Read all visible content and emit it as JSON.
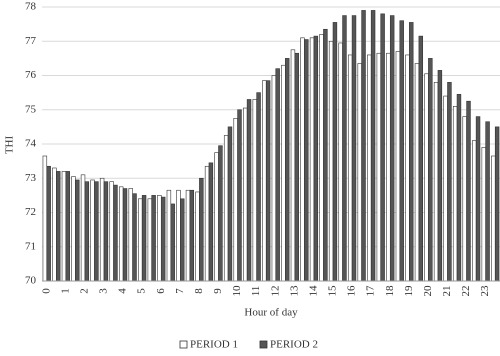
{
  "chart_data": {
    "type": "bar",
    "x_label": "Hour of day",
    "y_label": "THI",
    "categories": [
      "0",
      null,
      "1",
      null,
      "2",
      null,
      "3",
      null,
      "4",
      null,
      "5",
      null,
      "6",
      null,
      "7",
      null,
      "8",
      null,
      "9",
      null,
      "10",
      null,
      "11",
      null,
      "12",
      null,
      "13",
      null,
      "14",
      null,
      "15",
      null,
      "16",
      null,
      "17",
      null,
      "18",
      null,
      "19",
      null,
      "20",
      null,
      "21",
      null,
      "22",
      null,
      "23",
      null
    ],
    "series": [
      {
        "name": "PERIOD 1",
        "color": "#ffffff",
        "values": [
          73.65,
          73.3,
          73.2,
          73.05,
          73.1,
          72.95,
          73.0,
          72.9,
          72.75,
          72.7,
          72.4,
          72.4,
          72.5,
          72.65,
          72.65,
          72.65,
          72.6,
          73.35,
          73.75,
          74.25,
          74.75,
          75.05,
          75.3,
          75.85,
          76.0,
          76.3,
          76.75,
          77.1,
          77.1,
          77.2,
          77.0,
          76.95,
          76.6,
          76.35,
          76.6,
          76.65,
          76.65,
          76.7,
          76.6,
          76.35,
          76.05,
          75.8,
          75.4,
          75.1,
          74.8,
          74.1,
          73.9,
          73.65
        ]
      },
      {
        "name": "PERIOD 2",
        "color": "#555555",
        "values": [
          73.35,
          73.2,
          73.2,
          72.95,
          72.9,
          72.9,
          72.9,
          72.8,
          72.7,
          72.55,
          72.5,
          72.5,
          72.45,
          72.25,
          72.4,
          72.65,
          73.0,
          73.45,
          73.95,
          74.5,
          75.0,
          75.3,
          75.5,
          75.85,
          76.2,
          76.5,
          76.65,
          77.05,
          77.15,
          77.35,
          77.55,
          77.75,
          77.75,
          77.9,
          77.9,
          77.8,
          77.75,
          77.6,
          77.55,
          77.15,
          76.5,
          76.15,
          75.8,
          75.45,
          75.25,
          74.8,
          74.65,
          74.5
        ]
      }
    ],
    "ylim": [
      70,
      78
    ],
    "yticks": [
      70,
      71,
      72,
      73,
      74,
      75,
      76,
      77,
      78
    ],
    "grid": true,
    "legend": "bottom"
  }
}
